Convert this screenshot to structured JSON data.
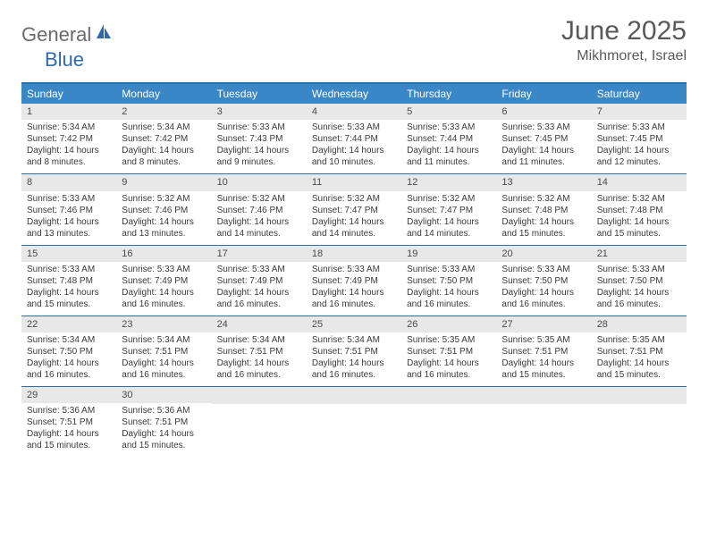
{
  "brand": {
    "text_general": "General",
    "text_blue": "Blue",
    "accent_color": "#2a6bb0",
    "gray_color": "#6b6b6b"
  },
  "header": {
    "month_title": "June 2025",
    "location": "Mikhmoret, Israel"
  },
  "colors": {
    "header_bg": "#3a87c7",
    "border": "#2f6fa8",
    "daynum_bg": "#e8e8e8",
    "text": "#3a3a3a",
    "title_text": "#595959"
  },
  "day_names": [
    "Sunday",
    "Monday",
    "Tuesday",
    "Wednesday",
    "Thursday",
    "Friday",
    "Saturday"
  ],
  "weeks": [
    [
      {
        "n": "1",
        "sunrise": "5:34 AM",
        "sunset": "7:42 PM",
        "daylight": "14 hours and 8 minutes."
      },
      {
        "n": "2",
        "sunrise": "5:34 AM",
        "sunset": "7:42 PM",
        "daylight": "14 hours and 8 minutes."
      },
      {
        "n": "3",
        "sunrise": "5:33 AM",
        "sunset": "7:43 PM",
        "daylight": "14 hours and 9 minutes."
      },
      {
        "n": "4",
        "sunrise": "5:33 AM",
        "sunset": "7:44 PM",
        "daylight": "14 hours and 10 minutes."
      },
      {
        "n": "5",
        "sunrise": "5:33 AM",
        "sunset": "7:44 PM",
        "daylight": "14 hours and 11 minutes."
      },
      {
        "n": "6",
        "sunrise": "5:33 AM",
        "sunset": "7:45 PM",
        "daylight": "14 hours and 11 minutes."
      },
      {
        "n": "7",
        "sunrise": "5:33 AM",
        "sunset": "7:45 PM",
        "daylight": "14 hours and 12 minutes."
      }
    ],
    [
      {
        "n": "8",
        "sunrise": "5:33 AM",
        "sunset": "7:46 PM",
        "daylight": "14 hours and 13 minutes."
      },
      {
        "n": "9",
        "sunrise": "5:32 AM",
        "sunset": "7:46 PM",
        "daylight": "14 hours and 13 minutes."
      },
      {
        "n": "10",
        "sunrise": "5:32 AM",
        "sunset": "7:46 PM",
        "daylight": "14 hours and 14 minutes."
      },
      {
        "n": "11",
        "sunrise": "5:32 AM",
        "sunset": "7:47 PM",
        "daylight": "14 hours and 14 minutes."
      },
      {
        "n": "12",
        "sunrise": "5:32 AM",
        "sunset": "7:47 PM",
        "daylight": "14 hours and 14 minutes."
      },
      {
        "n": "13",
        "sunrise": "5:32 AM",
        "sunset": "7:48 PM",
        "daylight": "14 hours and 15 minutes."
      },
      {
        "n": "14",
        "sunrise": "5:32 AM",
        "sunset": "7:48 PM",
        "daylight": "14 hours and 15 minutes."
      }
    ],
    [
      {
        "n": "15",
        "sunrise": "5:33 AM",
        "sunset": "7:48 PM",
        "daylight": "14 hours and 15 minutes."
      },
      {
        "n": "16",
        "sunrise": "5:33 AM",
        "sunset": "7:49 PM",
        "daylight": "14 hours and 16 minutes."
      },
      {
        "n": "17",
        "sunrise": "5:33 AM",
        "sunset": "7:49 PM",
        "daylight": "14 hours and 16 minutes."
      },
      {
        "n": "18",
        "sunrise": "5:33 AM",
        "sunset": "7:49 PM",
        "daylight": "14 hours and 16 minutes."
      },
      {
        "n": "19",
        "sunrise": "5:33 AM",
        "sunset": "7:50 PM",
        "daylight": "14 hours and 16 minutes."
      },
      {
        "n": "20",
        "sunrise": "5:33 AM",
        "sunset": "7:50 PM",
        "daylight": "14 hours and 16 minutes."
      },
      {
        "n": "21",
        "sunrise": "5:33 AM",
        "sunset": "7:50 PM",
        "daylight": "14 hours and 16 minutes."
      }
    ],
    [
      {
        "n": "22",
        "sunrise": "5:34 AM",
        "sunset": "7:50 PM",
        "daylight": "14 hours and 16 minutes."
      },
      {
        "n": "23",
        "sunrise": "5:34 AM",
        "sunset": "7:51 PM",
        "daylight": "14 hours and 16 minutes."
      },
      {
        "n": "24",
        "sunrise": "5:34 AM",
        "sunset": "7:51 PM",
        "daylight": "14 hours and 16 minutes."
      },
      {
        "n": "25",
        "sunrise": "5:34 AM",
        "sunset": "7:51 PM",
        "daylight": "14 hours and 16 minutes."
      },
      {
        "n": "26",
        "sunrise": "5:35 AM",
        "sunset": "7:51 PM",
        "daylight": "14 hours and 16 minutes."
      },
      {
        "n": "27",
        "sunrise": "5:35 AM",
        "sunset": "7:51 PM",
        "daylight": "14 hours and 15 minutes."
      },
      {
        "n": "28",
        "sunrise": "5:35 AM",
        "sunset": "7:51 PM",
        "daylight": "14 hours and 15 minutes."
      }
    ],
    [
      {
        "n": "29",
        "sunrise": "5:36 AM",
        "sunset": "7:51 PM",
        "daylight": "14 hours and 15 minutes."
      },
      {
        "n": "30",
        "sunrise": "5:36 AM",
        "sunset": "7:51 PM",
        "daylight": "14 hours and 15 minutes."
      },
      null,
      null,
      null,
      null,
      null
    ]
  ],
  "labels": {
    "sunrise": "Sunrise: ",
    "sunset": "Sunset: ",
    "daylight": "Daylight: "
  }
}
